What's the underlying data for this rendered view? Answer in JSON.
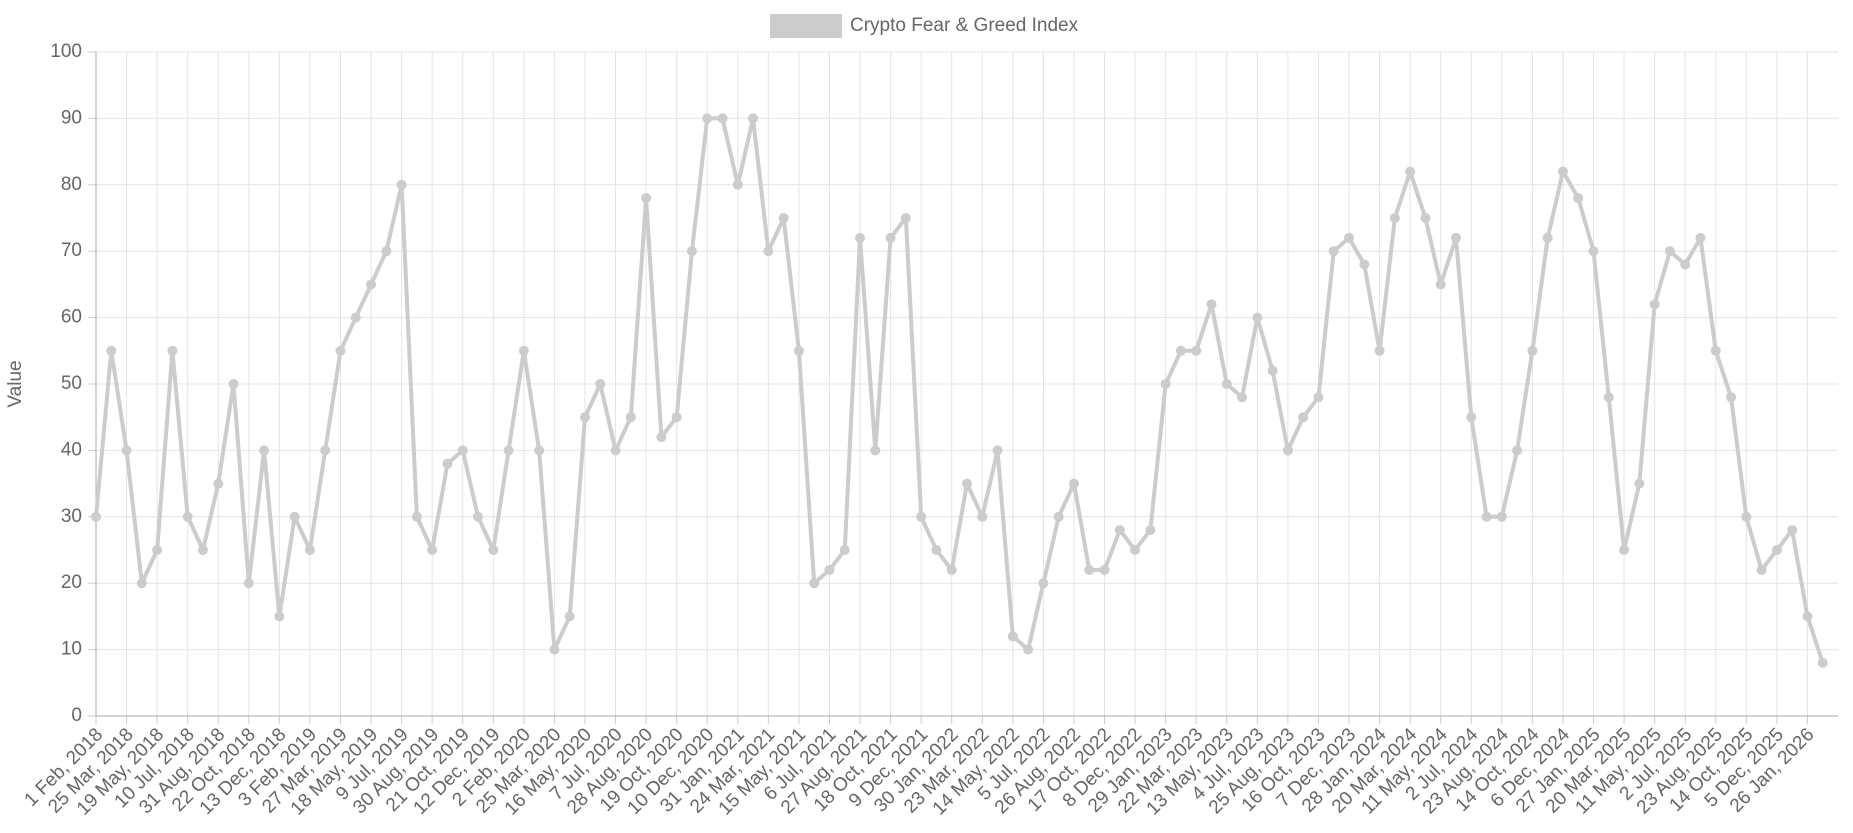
{
  "chart_data": {
    "type": "line",
    "y_label": "Value",
    "categories": [
      "1 Feb, 2018",
      null,
      "25 Mar, 2018",
      null,
      "19 May, 2018",
      null,
      "10 Jul, 2018",
      null,
      "31 Aug, 2018",
      null,
      "22 Oct, 2018",
      null,
      "13 Dec, 2018",
      null,
      "3 Feb, 2019",
      null,
      "27 Mar, 2019",
      null,
      "18 May, 2019",
      null,
      "9 Jul, 2019",
      null,
      "30 Aug, 2019",
      null,
      "21 Oct, 2019",
      null,
      "12 Dec, 2019",
      null,
      "2 Feb, 2020",
      null,
      "25 Mar, 2020",
      null,
      "16 May, 2020",
      null,
      "7 Jul, 2020",
      null,
      "28 Aug, 2020",
      null,
      "19 Oct, 2020",
      null,
      "10 Dec, 2020",
      null,
      "31 Jan, 2021",
      null,
      "24 Mar, 2021",
      null,
      "15 May, 2021",
      null,
      "6 Jul, 2021",
      null,
      "27 Aug, 2021",
      null,
      "18 Oct, 2021",
      null,
      "9 Dec, 2021",
      null,
      "30 Jan, 2022",
      null,
      "23 Mar, 2022",
      null,
      "14 May, 2022",
      null,
      "5 Jul, 2022",
      null,
      "26 Aug, 2022",
      null,
      "17 Oct, 2022",
      null,
      "8 Dec, 2022",
      null,
      "29 Jan, 2023",
      null,
      "22 Mar, 2023",
      null,
      "13 May, 2023",
      null,
      "4 Jul, 2023",
      null,
      "25 Aug, 2023",
      null,
      "16 Oct, 2023",
      null,
      "7 Dec, 2023",
      null,
      "28 Jan, 2024",
      null,
      "20 Mar, 2024",
      null,
      "11 May, 2024",
      null,
      "2 Jul, 2024",
      null,
      "23 Aug, 2024",
      null,
      "14 Oct, 2024",
      null,
      "6 Dec, 2024",
      null,
      "27 Jan, 2025",
      null,
      "20 Mar, 2025",
      null,
      "11 May, 2025",
      null,
      "2 Jul, 2025",
      null,
      "23 Aug, 2025",
      null,
      "14 Oct, 2025",
      null,
      "5 Dec, 2025",
      null,
      "26 Jan, 2026",
      null
    ],
    "series": [
      {
        "name": "Crypto Fear & Greed Index",
        "color": "#cccccc",
        "values": [
          30,
          55,
          40,
          20,
          25,
          55,
          30,
          25,
          35,
          50,
          20,
          40,
          15,
          30,
          25,
          40,
          55,
          60,
          65,
          70,
          80,
          30,
          25,
          38,
          40,
          30,
          25,
          40,
          55,
          40,
          10,
          15,
          45,
          50,
          40,
          45,
          78,
          42,
          45,
          70,
          90,
          90,
          80,
          90,
          70,
          75,
          55,
          20,
          22,
          25,
          72,
          40,
          72,
          75,
          30,
          25,
          22,
          35,
          30,
          40,
          12,
          10,
          20,
          30,
          35,
          22,
          22,
          28,
          25,
          28,
          50,
          55,
          55,
          62,
          50,
          48,
          60,
          52,
          40,
          45,
          48,
          70,
          72,
          68,
          55,
          75,
          82,
          75,
          65,
          72,
          45,
          30,
          30,
          40,
          55,
          72,
          82,
          78,
          70,
          48,
          25,
          35,
          62,
          70,
          68,
          72,
          55,
          48,
          30,
          22,
          25,
          28,
          15,
          8
        ]
      }
    ],
    "ylim": [
      0,
      100
    ],
    "yticks": [
      0,
      10,
      20,
      30,
      40,
      50,
      60,
      70,
      80,
      90,
      100
    ],
    "grid": true,
    "legend": "top"
  }
}
